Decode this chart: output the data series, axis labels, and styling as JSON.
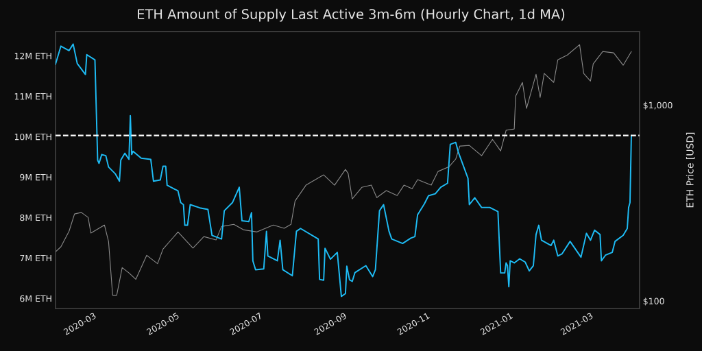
{
  "chart_data": {
    "type": "line",
    "title": "ETH Amount of Supply Last Active 3m-6m (Hourly Chart, 1d MA)",
    "y2label": "ETH Price [USD]",
    "xlim": [
      "2020-02-02",
      "2021-04-06"
    ],
    "xticks": [
      {
        "value": "2020-03-01",
        "label": "2020-03"
      },
      {
        "value": "2020-05-01",
        "label": "2020-05"
      },
      {
        "value": "2020-07-01",
        "label": "2020-07"
      },
      {
        "value": "2020-09-01",
        "label": "2020-09"
      },
      {
        "value": "2020-11-01",
        "label": "2020-11"
      },
      {
        "value": "2021-01-01",
        "label": "2021-01"
      },
      {
        "value": "2021-03-01",
        "label": "2021-03"
      }
    ],
    "ylim": [
      5.75,
      12.6
    ],
    "yticks": [
      {
        "value": 6,
        "label": "6M ETH"
      },
      {
        "value": 7,
        "label": "7M ETH"
      },
      {
        "value": 8,
        "label": "8M ETH"
      },
      {
        "value": 9,
        "label": "9M ETH"
      },
      {
        "value": 10,
        "label": "10M ETH"
      },
      {
        "value": 11,
        "label": "11M ETH"
      },
      {
        "value": 12,
        "label": "12M ETH"
      }
    ],
    "y2lim": [
      91.5,
      2370
    ],
    "y2ticks": [
      {
        "value": 100,
        "label": "$100"
      },
      {
        "value": 1000,
        "label": "$1,000"
      }
    ],
    "log": "y2",
    "grid": false,
    "line_style": "solid",
    "marker": "none",
    "ref_lines": [
      {
        "axis": "y",
        "value": 10.03,
        "label": null,
        "color": "#ffffff",
        "line_style": "dashed"
      }
    ],
    "series": [
      {
        "color": "#8a8a8a",
        "axis": "y2",
        "x": [
          "2020-02-02",
          "2020-02-06",
          "2020-02-12",
          "2020-02-16",
          "2020-02-21",
          "2020-02-26",
          "2020-02-28",
          "2020-03-09",
          "2020-03-12",
          "2020-03-15",
          "2020-03-18",
          "2020-03-22",
          "2020-03-27",
          "2020-04-01",
          "2020-04-09",
          "2020-04-17",
          "2020-04-21",
          "2020-05-02",
          "2020-05-13",
          "2020-05-21",
          "2020-05-30",
          "2020-06-03",
          "2020-06-12",
          "2020-06-19",
          "2020-06-29",
          "2020-07-11",
          "2020-07-19",
          "2020-07-24",
          "2020-07-27",
          "2020-08-04",
          "2020-08-17",
          "2020-08-25",
          "2020-09-02",
          "2020-09-04",
          "2020-09-07",
          "2020-09-14",
          "2020-09-21",
          "2020-09-25",
          "2020-10-02",
          "2020-10-10",
          "2020-10-15",
          "2020-10-21",
          "2020-10-25",
          "2020-11-04",
          "2020-11-09",
          "2020-11-17",
          "2020-11-22",
          "2020-11-25",
          "2020-12-02",
          "2020-12-11",
          "2020-12-19",
          "2020-12-25",
          "2020-12-29",
          "2021-01-04",
          "2021-01-05",
          "2021-01-10",
          "2021-01-13",
          "2021-01-20",
          "2021-01-23",
          "2021-01-26",
          "2021-02-02",
          "2021-02-05",
          "2021-02-12",
          "2021-02-21",
          "2021-02-24",
          "2021-03-01",
          "2021-03-03",
          "2021-03-10",
          "2021-03-18",
          "2021-03-25",
          "2021-03-31"
        ],
        "values": [
          178,
          189,
          227,
          278,
          283,
          267,
          222,
          244,
          201,
          107,
          107,
          148,
          139,
          129,
          171,
          155,
          184,
          225,
          186,
          213,
          205,
          240,
          246,
          231,
          225,
          244,
          235,
          246,
          324,
          390,
          440,
          390,
          469,
          447,
          332,
          380,
          390,
          337,
          366,
          345,
          390,
          374,
          416,
          390,
          458,
          484,
          530,
          617,
          622,
          551,
          668,
          583,
          743,
          755,
          1110,
          1304,
          961,
          1436,
          1092,
          1449,
          1304,
          1702,
          1800,
          2032,
          1449,
          1325,
          1622,
          1875,
          1845,
          1596,
          1875
        ]
      },
      {
        "color": "#1ebcf5",
        "x": [
          "2020-02-02",
          "2020-02-06",
          "2020-02-12",
          "2020-02-15",
          "2020-02-18",
          "2020-02-24",
          "2020-02-25",
          "2020-03-02",
          "2020-03-04",
          "2020-03-05",
          "2020-03-07",
          "2020-03-10",
          "2020-03-12",
          "2020-03-17",
          "2020-03-20",
          "2020-03-21",
          "2020-03-24",
          "2020-03-27",
          "2020-03-28",
          "2020-03-29",
          "2020-03-30",
          "2020-04-05",
          "2020-04-12",
          "2020-04-14",
          "2020-04-19",
          "2020-04-21",
          "2020-04-23",
          "2020-04-24",
          "2020-05-02",
          "2020-05-04",
          "2020-05-06",
          "2020-05-07",
          "2020-05-09",
          "2020-05-11",
          "2020-05-18",
          "2020-05-24",
          "2020-05-27",
          "2020-06-03",
          "2020-06-05",
          "2020-06-11",
          "2020-06-16",
          "2020-06-18",
          "2020-06-23",
          "2020-06-25",
          "2020-06-26",
          "2020-06-28",
          "2020-07-04",
          "2020-07-06",
          "2020-07-07",
          "2020-07-14",
          "2020-07-16",
          "2020-07-18",
          "2020-07-25",
          "2020-07-28",
          "2020-07-31",
          "2020-08-13",
          "2020-08-14",
          "2020-08-17",
          "2020-08-18",
          "2020-08-22",
          "2020-08-27",
          "2020-08-30",
          "2020-09-02",
          "2020-09-03",
          "2020-09-05",
          "2020-09-07",
          "2020-09-09",
          "2020-09-17",
          "2020-09-22",
          "2020-09-24",
          "2020-09-27",
          "2020-09-30",
          "2020-10-04",
          "2020-10-06",
          "2020-10-14",
          "2020-10-20",
          "2020-10-23",
          "2020-10-25",
          "2020-10-30",
          "2020-11-02",
          "2020-11-07",
          "2020-11-11",
          "2020-11-16",
          "2020-11-18",
          "2020-11-22",
          "2020-11-24",
          "2020-12-01",
          "2020-12-02",
          "2020-12-06",
          "2020-12-11",
          "2020-12-17",
          "2020-12-23",
          "2020-12-25",
          "2020-12-28",
          "2020-12-29",
          "2020-12-30",
          "2020-12-31",
          "2021-01-01",
          "2021-01-04",
          "2021-01-08",
          "2021-01-12",
          "2021-01-15",
          "2021-01-18",
          "2021-01-20",
          "2021-01-22",
          "2021-01-24",
          "2021-01-31",
          "2021-02-02",
          "2021-02-05",
          "2021-02-08",
          "2021-02-14",
          "2021-02-22",
          "2021-02-26",
          "2021-03-01",
          "2021-03-04",
          "2021-03-08",
          "2021-03-09",
          "2021-03-12",
          "2021-03-17",
          "2021-03-19",
          "2021-03-25",
          "2021-03-28",
          "2021-03-29",
          "2021-03-30",
          "2021-03-31"
        ],
        "values": [
          11.79,
          12.24,
          12.13,
          12.29,
          11.81,
          11.54,
          12.03,
          11.9,
          9.42,
          9.34,
          9.56,
          9.53,
          9.25,
          9.08,
          8.9,
          9.42,
          9.59,
          9.44,
          10.52,
          9.56,
          9.64,
          9.47,
          9.44,
          8.9,
          8.93,
          9.27,
          9.27,
          8.8,
          8.66,
          8.37,
          8.32,
          7.81,
          7.81,
          8.32,
          8.24,
          8.2,
          7.56,
          7.47,
          8.17,
          8.37,
          8.75,
          7.92,
          7.9,
          8.12,
          6.93,
          6.71,
          6.73,
          7.66,
          7.05,
          6.93,
          7.44,
          6.71,
          6.56,
          7.66,
          7.73,
          7.47,
          6.47,
          6.45,
          7.24,
          6.97,
          7.14,
          6.05,
          6.12,
          6.8,
          6.46,
          6.42,
          6.64,
          6.81,
          6.54,
          6.71,
          8.17,
          8.32,
          7.66,
          7.47,
          7.36,
          7.49,
          7.53,
          8.07,
          8.34,
          8.54,
          8.59,
          8.75,
          8.85,
          9.81,
          9.86,
          9.61,
          8.97,
          8.32,
          8.49,
          8.25,
          8.25,
          8.15,
          6.63,
          6.63,
          6.88,
          6.81,
          6.29,
          6.93,
          6.88,
          6.98,
          6.9,
          6.68,
          6.81,
          7.58,
          7.81,
          7.44,
          7.31,
          7.44,
          7.05,
          7.1,
          7.41,
          7.02,
          7.61,
          7.44,
          7.69,
          7.58,
          6.93,
          7.07,
          7.14,
          7.41,
          7.56,
          7.73,
          8.25,
          8.37,
          10.03
        ]
      }
    ]
  }
}
